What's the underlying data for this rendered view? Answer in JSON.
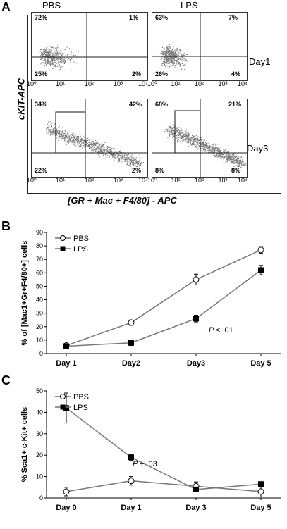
{
  "panels": {
    "a": "A",
    "b": "B",
    "c": "C"
  },
  "flow": {
    "conditions": [
      "PBS",
      "LPS"
    ],
    "days": [
      "Day1",
      "Day3"
    ],
    "ylabel": "cKIT-APC",
    "xlabel": "[GR + Mac + F4/80] - APC",
    "tick_labels": [
      "10⁰",
      "10¹",
      "10²",
      "10³",
      "10⁴"
    ],
    "plots": [
      {
        "condition": "PBS",
        "day": "Day1",
        "quadrants": {
          "tl": "72%",
          "tr": "1%",
          "bl": "25%",
          "br": "2%"
        }
      },
      {
        "condition": "LPS",
        "day": "Day1",
        "quadrants": {
          "tl": "63%",
          "tr": "7%",
          "bl": "26%",
          "br": "4%"
        }
      },
      {
        "condition": "PBS",
        "day": "Day3",
        "quadrants": {
          "tl": "34%",
          "tr": "42%",
          "bl": "22%",
          "br": "2%"
        }
      },
      {
        "condition": "LPS",
        "day": "Day3",
        "quadrants": {
          "tl": "68%",
          "tr": "21%",
          "bl": "8%",
          "br": "8%"
        }
      }
    ]
  },
  "chart_data": [
    {
      "type": "line",
      "categories": [
        "Day 1",
        "Day2",
        "Day3",
        "Day 5"
      ],
      "ylabel": "% of [Mac1+Gr+F4/80+] cells",
      "ylim": [
        0,
        90
      ],
      "yticks": [
        0,
        10,
        20,
        30,
        40,
        50,
        60,
        70,
        80,
        90
      ],
      "annotation": "P < .01",
      "legend_position": "top-left",
      "series": [
        {
          "name": "PBS",
          "values": [
            6,
            23,
            55,
            77
          ],
          "errors": [
            1,
            2,
            4,
            2.5
          ],
          "marker": "open-circle"
        },
        {
          "name": "LPS",
          "values": [
            5.5,
            8,
            26,
            62
          ],
          "errors": [
            1,
            2,
            2.5,
            3.5
          ],
          "marker": "filled-square"
        }
      ]
    },
    {
      "type": "line",
      "categories": [
        "Day 0",
        "Day 1",
        "Day 3",
        "Day 5"
      ],
      "ylabel": "% Sca1+ c-Kit+ cells",
      "ylim": [
        0,
        50
      ],
      "yticks": [
        0,
        10,
        20,
        30,
        40,
        50
      ],
      "annotation": "P + .03",
      "legend_position": "top-left",
      "series": [
        {
          "name": "PBS",
          "values": [
            3,
            8,
            5.5,
            3
          ],
          "errors": [
            2,
            2,
            2,
            2.5
          ],
          "marker": "open-circle"
        },
        {
          "name": "LPS",
          "values": [
            42,
            19,
            4,
            6.5
          ],
          "errors": [
            7,
            1.5,
            1,
            1
          ],
          "marker": "filled-square"
        }
      ]
    }
  ]
}
